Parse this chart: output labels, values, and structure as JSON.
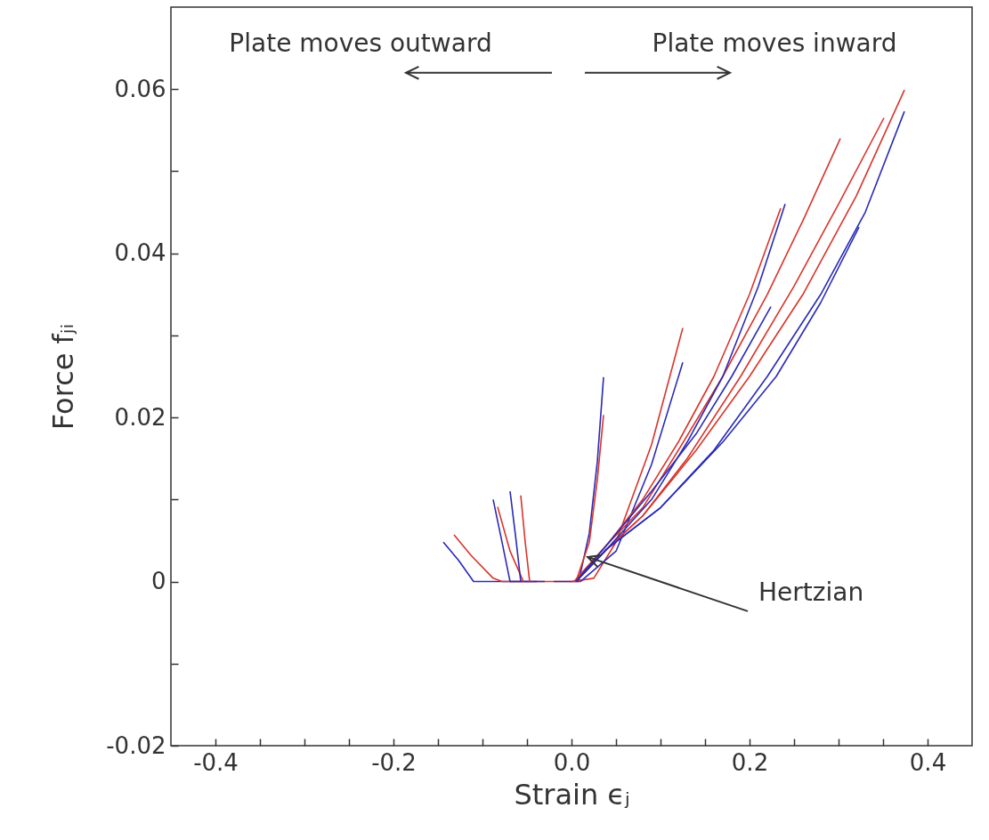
{
  "chart_data": {
    "type": "line",
    "xlabel": "Strain ϵⱼ",
    "ylabel": "Force fⱼᵢ",
    "annotations": [
      "Plate moves outward",
      "Plate moves inward",
      {
        "text": "Hertzian",
        "x": 0.018,
        "y": 0.003
      }
    ],
    "xlim": [
      -0.45,
      0.45
    ],
    "ylim": [
      -0.02,
      0.07
    ],
    "xticks": [
      -0.4,
      {
        "value": -0.35,
        "label": null
      },
      {
        "value": -0.3,
        "label": null
      },
      {
        "value": -0.25,
        "label": null
      },
      -0.2,
      {
        "value": -0.15,
        "label": null
      },
      {
        "value": -0.1,
        "label": null
      },
      {
        "value": -0.05,
        "label": null
      },
      {
        "value": 0,
        "label": "0.0"
      },
      {
        "value": 0.05,
        "label": null
      },
      {
        "value": 0.1,
        "label": null
      },
      {
        "value": 0.15,
        "label": null
      },
      0.2,
      {
        "value": 0.25,
        "label": null
      },
      {
        "value": 0.3,
        "label": null
      },
      {
        "value": 0.35,
        "label": null
      },
      0.4
    ],
    "yticks": [
      -0.02,
      {
        "value": -0.01,
        "label": null
      },
      0,
      {
        "value": 0.01,
        "label": null
      },
      0.02,
      {
        "value": 0.03,
        "label": null
      },
      0.04,
      {
        "value": 0.05,
        "label": null
      },
      0.06
    ],
    "grid": false,
    "line_style": "solid",
    "marker": "none",
    "series": [
      {
        "color": "#2a2ab8",
        "x": [
          -0.144,
          -0.127,
          -0.11,
          -0.039
        ],
        "values": [
          0.0048,
          0.0026,
          0,
          0
        ]
      },
      {
        "color": "#d9342b",
        "x": [
          -0.132,
          -0.113,
          -0.088,
          -0.078,
          0.01
        ],
        "values": [
          0.0057,
          0.0032,
          0.0004,
          0,
          0
        ]
      },
      {
        "color": "#2a2ab8",
        "x": [
          -0.088,
          -0.078,
          -0.069,
          -0.03
        ],
        "values": [
          0.01,
          0.0048,
          0,
          0
        ]
      },
      {
        "color": "#d9342b",
        "x": [
          -0.083,
          -0.069,
          -0.054
        ],
        "values": [
          0.0091,
          0.0037,
          0
        ]
      },
      {
        "color": "#2a2ab8",
        "x": [
          -0.069,
          -0.062,
          -0.057
        ],
        "values": [
          0.011,
          0.0048,
          0
        ]
      },
      {
        "color": "#d9342b",
        "x": [
          -0.057,
          -0.052,
          -0.047
        ],
        "values": [
          0.0105,
          0.0048,
          0
        ]
      },
      {
        "color": "#2a2ab8",
        "x": [
          -0.02,
          0.008,
          0.02,
          0.029,
          0.036
        ],
        "values": [
          0,
          0,
          0.0059,
          0.0146,
          0.0249
        ]
      },
      {
        "color": "#d9342b",
        "x": [
          0.005,
          0.02,
          0.029,
          0.036
        ],
        "values": [
          0,
          0.0048,
          0.0124,
          0.0203
        ]
      },
      {
        "color": "#d9342b",
        "x": [
          0,
          0.025,
          0.05,
          0.09,
          0.125
        ],
        "values": [
          0,
          0.0004,
          0.0048,
          0.0167,
          0.0309
        ]
      },
      {
        "color": "#2a2ab8",
        "x": [
          0.01,
          0.05,
          0.09,
          0.125
        ],
        "values": [
          0,
          0.0037,
          0.0143,
          0.0267
        ]
      },
      {
        "color": "#d9342b",
        "x": [
          0.005,
          0.04,
          0.08,
          0.14,
          0.2,
          0.26,
          0.32,
          0.374
        ],
        "values": [
          0,
          0.004,
          0.008,
          0.016,
          0.025,
          0.035,
          0.047,
          0.0599
        ]
      },
      {
        "color": "#2a2ab8",
        "x": [
          0.005,
          0.04,
          0.1,
          0.16,
          0.22,
          0.28,
          0.33,
          0.374
        ],
        "values": [
          0,
          0.004,
          0.009,
          0.016,
          0.025,
          0.035,
          0.045,
          0.0573
        ]
      },
      {
        "color": "#d9342b",
        "x": [
          0.005,
          0.04,
          0.08,
          0.13,
          0.19,
          0.25,
          0.3,
          0.351
        ],
        "values": [
          0,
          0.004,
          0.008,
          0.015,
          0.025,
          0.036,
          0.046,
          0.0565
        ]
      },
      {
        "color": "#d9342b",
        "x": [
          0.003,
          0.04,
          0.08,
          0.12,
          0.17,
          0.22,
          0.26,
          0.302
        ],
        "values": [
          0,
          0.0045,
          0.009,
          0.016,
          0.025,
          0.035,
          0.044,
          0.054
        ]
      },
      {
        "color": "#2a2ab8",
        "x": [
          0.005,
          0.04,
          0.1,
          0.17,
          0.23,
          0.28,
          0.323
        ],
        "values": [
          0,
          0.004,
          0.009,
          0.017,
          0.025,
          0.034,
          0.0432
        ]
      },
      {
        "color": "#2a2ab8",
        "x": [
          0.005,
          0.04,
          0.09,
          0.13,
          0.17,
          0.21,
          0.24
        ],
        "values": [
          0,
          0.004,
          0.01,
          0.017,
          0.025,
          0.036,
          0.046
        ]
      },
      {
        "color": "#d9342b",
        "x": [
          0.003,
          0.04,
          0.08,
          0.12,
          0.16,
          0.2,
          0.235
        ],
        "values": [
          0,
          0.0045,
          0.01,
          0.017,
          0.025,
          0.035,
          0.0455
        ]
      },
      {
        "color": "#2a2ab8",
        "x": [
          0.005,
          0.04,
          0.09,
          0.14,
          0.18,
          0.224
        ],
        "values": [
          0,
          0.0045,
          0.011,
          0.018,
          0.025,
          0.0335
        ]
      }
    ]
  }
}
